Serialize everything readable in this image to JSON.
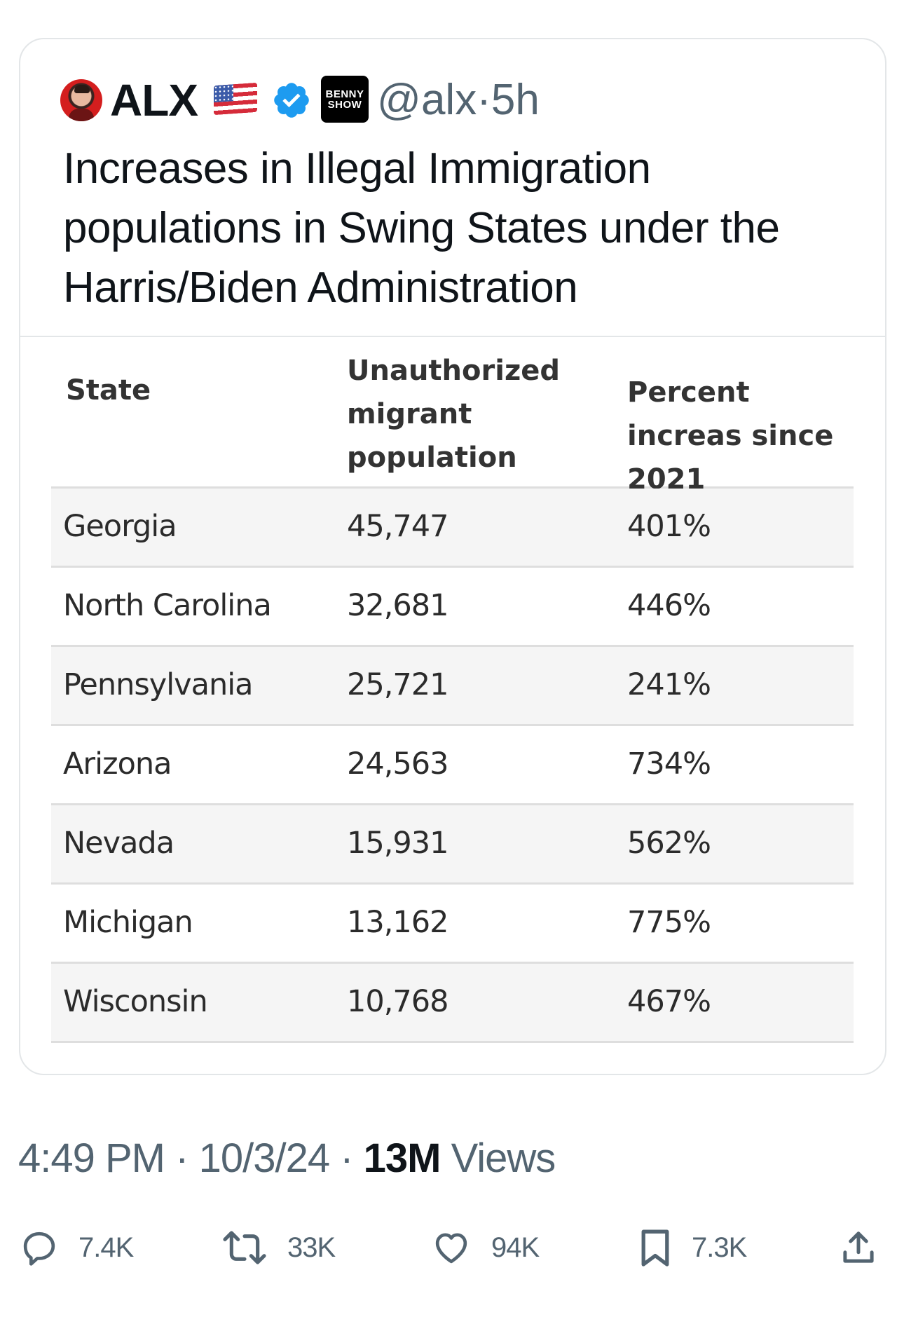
{
  "post": {
    "author_name": "ALX",
    "flag_emoji": "🇺🇸",
    "verified": true,
    "affiliate_logo_text": [
      "BENNY",
      "SHOW"
    ],
    "handle": "@alx",
    "separator": "·",
    "age": "5h",
    "title": "Increases in Illegal Immigration populations in Swing States under the Harris/Biden Administration"
  },
  "table": {
    "headers": [
      "State",
      "Unauthorized migrant population",
      "Percent increas since 2021"
    ],
    "rows": [
      {
        "state": "Georgia",
        "population": "45,747",
        "percent": "401%"
      },
      {
        "state": "North Carolina",
        "population": "32,681",
        "percent": "446%"
      },
      {
        "state": "Pennsylvania",
        "population": "25,721",
        "percent": "241%"
      },
      {
        "state": "Arizona",
        "population": "24,563",
        "percent": "734%"
      },
      {
        "state": "Nevada",
        "population": "15,931",
        "percent": "562%"
      },
      {
        "state": "Michigan",
        "population": "13,162",
        "percent": "775%"
      },
      {
        "state": "Wisconsin",
        "population": "10,768",
        "percent": "467%"
      }
    ]
  },
  "meta": {
    "time": "4:49 PM",
    "date": "10/3/24",
    "sep": "·",
    "views_count": "13M",
    "views_label": "Views"
  },
  "actions": {
    "replies": {
      "icon": "reply-icon",
      "count": "7.4K"
    },
    "reposts": {
      "icon": "repost-icon",
      "count": "33K"
    },
    "likes": {
      "icon": "heart-icon",
      "count": "94K"
    },
    "bookmarks": {
      "icon": "bookmark-icon",
      "count": "7.3K"
    },
    "share": {
      "icon": "share-icon"
    }
  },
  "colors": {
    "text_primary": "#0f1419",
    "text_secondary": "#536471",
    "verified_blue": "#1d9bf0",
    "row_shade": "#f5f5f5",
    "avatar_red": "#d41e1e"
  }
}
